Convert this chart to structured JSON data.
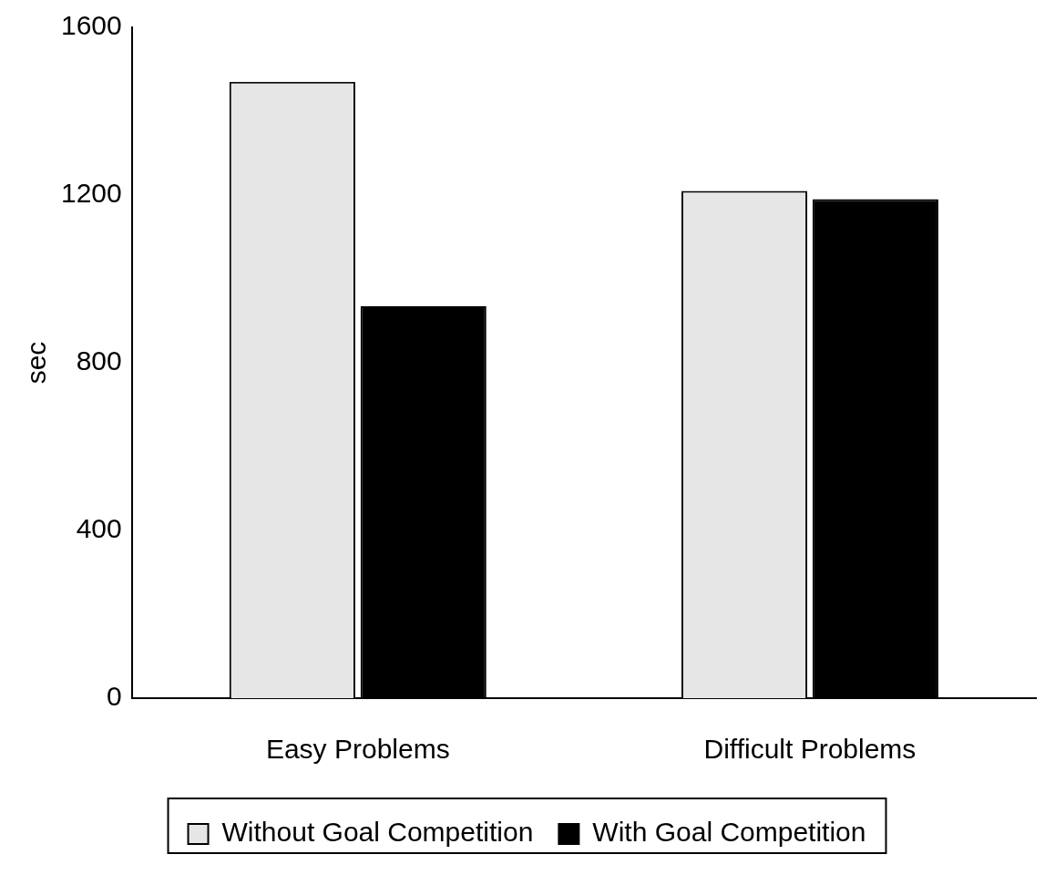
{
  "chart_data": {
    "type": "bar",
    "ylabel": "sec",
    "categories": [
      "Easy Problems",
      "Difficult Problems"
    ],
    "series": [
      {
        "name": "Without Goal Competition",
        "color": "#e6e6e6",
        "values": [
          1470,
          1210
        ]
      },
      {
        "name": "With Goal Competition",
        "color": "#000000",
        "values": [
          935,
          1190
        ]
      }
    ],
    "ylim": [
      0,
      1600
    ],
    "yticks": [
      0,
      400,
      800,
      1200,
      1600
    ],
    "grid": false,
    "legend": "bottom"
  }
}
